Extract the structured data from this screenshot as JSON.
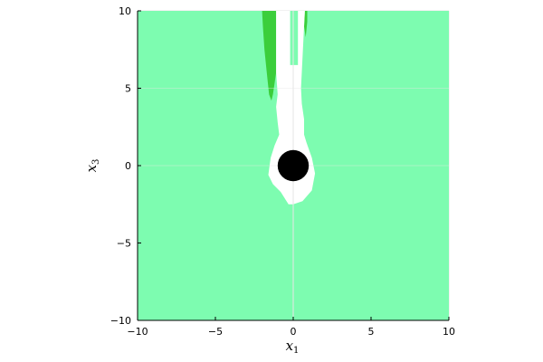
{
  "chart_data": {
    "type": "heatmap",
    "title": "",
    "xlabel": {
      "base": "x",
      "sub": "1"
    },
    "ylabel": {
      "base": "x",
      "sub": "3"
    },
    "xlim": [
      -10,
      10
    ],
    "ylim": [
      -10,
      10
    ],
    "xticks": [
      {
        "value": -10,
        "label": "−10"
      },
      {
        "value": -5,
        "label": "−5"
      },
      {
        "value": 0,
        "label": "0"
      },
      {
        "value": 5,
        "label": "5"
      },
      {
        "value": 10,
        "label": "10"
      }
    ],
    "yticks": [
      {
        "value": -10,
        "label": "−10"
      },
      {
        "value": -5,
        "label": "−5"
      },
      {
        "value": 0,
        "label": "0"
      },
      {
        "value": 5,
        "label": "5"
      },
      {
        "value": 10,
        "label": "10"
      }
    ],
    "grid": true,
    "legend": "none",
    "colors": {
      "background_region": "#7dfcb0",
      "green_region": "#3bce3b",
      "unsafe_region": "#ffffff",
      "obstacle": "#000000",
      "grid": "#e6e6e6",
      "axis": "#000000"
    },
    "regions": [
      {
        "name": "green-region-left",
        "color_key": "green_region",
        "polygon": [
          [
            -2.0,
            10
          ],
          [
            -1.1,
            10
          ],
          [
            -1.1,
            6.0
          ],
          [
            -1.3,
            4.6
          ],
          [
            -1.4,
            4.2
          ],
          [
            -1.55,
            4.6
          ],
          [
            -1.7,
            6.0
          ],
          [
            -1.85,
            7.5
          ],
          [
            -1.95,
            9.0
          ]
        ]
      },
      {
        "name": "green-region-right",
        "color_key": "green_region",
        "polygon": [
          [
            0.75,
            10
          ],
          [
            0.9,
            10
          ],
          [
            0.9,
            9.3
          ],
          [
            0.8,
            8.3
          ],
          [
            0.7,
            9.0
          ]
        ]
      },
      {
        "name": "white-region",
        "color_key": "unsafe_region",
        "polygon": [
          [
            -1.1,
            10
          ],
          [
            -0.2,
            10
          ],
          [
            -0.2,
            6.5
          ],
          [
            0.3,
            6.5
          ],
          [
            0.3,
            10
          ],
          [
            0.75,
            10
          ],
          [
            0.7,
            9.0
          ],
          [
            0.6,
            7.0
          ],
          [
            0.5,
            5.0
          ],
          [
            0.55,
            4.0
          ],
          [
            0.7,
            3.0
          ],
          [
            0.7,
            2.0
          ],
          [
            0.85,
            1.5
          ],
          [
            1.2,
            0.5
          ],
          [
            1.4,
            -0.5
          ],
          [
            1.2,
            -1.6
          ],
          [
            0.6,
            -2.3
          ],
          [
            0.0,
            -2.5
          ],
          [
            -0.3,
            -2.5
          ],
          [
            -0.8,
            -1.7
          ],
          [
            -1.3,
            -1.2
          ],
          [
            -1.6,
            -0.6
          ],
          [
            -1.45,
            0.5
          ],
          [
            -1.2,
            1.3
          ],
          [
            -0.9,
            2.0
          ],
          [
            -1.0,
            2.8
          ],
          [
            -1.1,
            3.8
          ],
          [
            -1.0,
            4.6
          ],
          [
            -1.1,
            6.0
          ]
        ]
      }
    ],
    "obstacle": {
      "center": [
        0,
        0
      ],
      "radius": 1.0
    }
  }
}
